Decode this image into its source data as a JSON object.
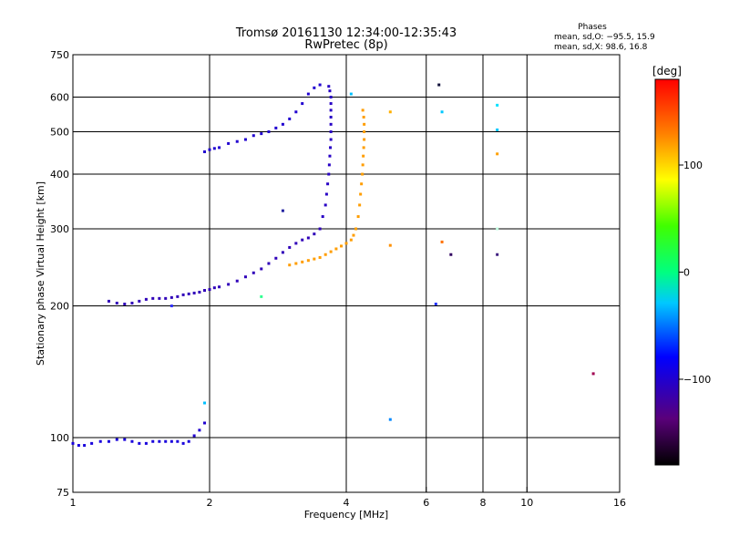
{
  "chart_data": {
    "type": "scatter",
    "title": "Tromsø 20161130 12:34:00-12:35:43",
    "subtitle": "RwPretec (8p)",
    "xlabel": "Frequency [MHz]",
    "ylabel": "Stationary phase Virtual Height [km]",
    "x_scale": "log",
    "y_scale": "log",
    "xlim": [
      1,
      16
    ],
    "ylim": [
      75,
      750
    ],
    "x_ticks": [
      "1",
      "2",
      "4",
      "6",
      "8",
      "10",
      "16"
    ],
    "x_tick_values": [
      1,
      2,
      4,
      6,
      8,
      10,
      16
    ],
    "y_ticks": [
      "75",
      "100",
      "200",
      "300",
      "400",
      "500",
      "600",
      "750"
    ],
    "y_tick_values": [
      75,
      100,
      200,
      300,
      400,
      500,
      600,
      750
    ],
    "grid": true,
    "info": {
      "heading": "Phases",
      "line1": "mean, sd,O: −95.5, 15.9",
      "line2": "mean, sd,X:  98.6, 16.8"
    },
    "colorbar": {
      "label": "[deg]",
      "range": [
        -180,
        180
      ],
      "ticks": [
        "100",
        "0",
        "−100"
      ],
      "tick_values": [
        100,
        0,
        -100
      ]
    },
    "series": [
      {
        "mode": "O",
        "phase_deg": -95,
        "points": [
          [
            1.0,
            97
          ],
          [
            1.03,
            96
          ],
          [
            1.06,
            96
          ],
          [
            1.1,
            97
          ],
          [
            1.15,
            98
          ],
          [
            1.2,
            98
          ],
          [
            1.25,
            99
          ],
          [
            1.3,
            99
          ],
          [
            1.35,
            98
          ],
          [
            1.4,
            97
          ],
          [
            1.45,
            97
          ],
          [
            1.5,
            98
          ],
          [
            1.55,
            98
          ],
          [
            1.6,
            98
          ],
          [
            1.65,
            98
          ],
          [
            1.7,
            98
          ],
          [
            1.75,
            97
          ],
          [
            1.8,
            98
          ]
        ]
      },
      {
        "mode": "O",
        "phase_deg": -100,
        "points": [
          [
            1.85,
            101
          ],
          [
            1.9,
            104
          ],
          [
            1.95,
            108
          ]
        ]
      },
      {
        "mode": "O",
        "phase_deg": -100,
        "points": [
          [
            1.95,
            450
          ],
          [
            2.0,
            455
          ],
          [
            2.05,
            458
          ],
          [
            2.1,
            460
          ],
          [
            2.2,
            470
          ],
          [
            2.3,
            475
          ],
          [
            2.4,
            480
          ],
          [
            2.5,
            490
          ],
          [
            2.6,
            495
          ],
          [
            2.7,
            500
          ],
          [
            2.8,
            510
          ],
          [
            2.9,
            520
          ],
          [
            3.0,
            535
          ],
          [
            3.1,
            555
          ],
          [
            3.2,
            580
          ],
          [
            3.3,
            610
          ],
          [
            3.4,
            630
          ],
          [
            3.5,
            640
          ]
        ]
      },
      {
        "mode": "O",
        "phase_deg": -110,
        "points": [
          [
            1.2,
            205
          ],
          [
            1.25,
            203
          ],
          [
            1.3,
            202
          ],
          [
            1.35,
            203
          ],
          [
            1.4,
            205
          ],
          [
            1.45,
            207
          ],
          [
            1.5,
            208
          ],
          [
            1.55,
            208
          ],
          [
            1.6,
            208
          ],
          [
            1.65,
            209
          ],
          [
            1.7,
            210
          ],
          [
            1.75,
            212
          ],
          [
            1.8,
            213
          ],
          [
            1.85,
            214
          ],
          [
            1.9,
            215
          ],
          [
            1.95,
            217
          ],
          [
            2.0,
            218
          ],
          [
            2.05,
            220
          ],
          [
            2.1,
            221
          ],
          [
            2.2,
            224
          ],
          [
            2.3,
            228
          ],
          [
            2.4,
            233
          ],
          [
            2.5,
            238
          ],
          [
            2.6,
            243
          ],
          [
            2.7,
            250
          ],
          [
            2.8,
            257
          ],
          [
            2.9,
            265
          ],
          [
            3.0,
            272
          ],
          [
            3.1,
            278
          ],
          [
            3.2,
            283
          ],
          [
            3.3,
            286
          ],
          [
            3.4,
            292
          ],
          [
            3.5,
            300
          ]
        ]
      },
      {
        "mode": "O",
        "phase_deg": -105,
        "points": [
          [
            3.55,
            320
          ],
          [
            3.6,
            340
          ],
          [
            3.62,
            360
          ],
          [
            3.64,
            380
          ],
          [
            3.66,
            400
          ],
          [
            3.67,
            420
          ],
          [
            3.68,
            440
          ],
          [
            3.69,
            460
          ],
          [
            3.7,
            480
          ],
          [
            3.7,
            500
          ],
          [
            3.7,
            520
          ],
          [
            3.7,
            540
          ],
          [
            3.7,
            560
          ],
          [
            3.7,
            580
          ],
          [
            3.7,
            600
          ],
          [
            3.68,
            620
          ],
          [
            3.66,
            635
          ]
        ]
      },
      {
        "mode": "X",
        "phase_deg": 120,
        "points": [
          [
            3.0,
            248
          ],
          [
            3.1,
            250
          ],
          [
            3.2,
            252
          ],
          [
            3.3,
            254
          ],
          [
            3.4,
            256
          ],
          [
            3.5,
            258
          ],
          [
            3.6,
            262
          ],
          [
            3.7,
            266
          ],
          [
            3.8,
            270
          ],
          [
            3.9,
            274
          ],
          [
            4.0,
            278
          ],
          [
            4.1,
            283
          ],
          [
            4.15,
            290
          ],
          [
            4.2,
            300
          ],
          [
            4.25,
            320
          ],
          [
            4.28,
            340
          ],
          [
            4.3,
            360
          ],
          [
            4.32,
            380
          ],
          [
            4.34,
            400
          ],
          [
            4.35,
            420
          ],
          [
            4.36,
            440
          ],
          [
            4.37,
            460
          ],
          [
            4.38,
            480
          ],
          [
            4.38,
            500
          ],
          [
            4.38,
            520
          ],
          [
            4.37,
            540
          ],
          [
            4.35,
            560
          ]
        ]
      },
      {
        "mode": "scatter",
        "phase_deg": null,
        "points": [
          [
            5.0,
            555
          ],
          [
            5.0,
            275
          ],
          [
            5.0,
            110
          ],
          [
            6.4,
            640
          ],
          [
            6.5,
            555
          ],
          [
            6.5,
            280
          ],
          [
            6.8,
            262
          ],
          [
            6.3,
            202
          ],
          [
            8.6,
            575
          ],
          [
            8.6,
            505
          ],
          [
            8.6,
            445
          ],
          [
            8.6,
            300
          ],
          [
            8.6,
            262
          ],
          [
            14,
            140
          ],
          [
            2.6,
            210
          ],
          [
            2.9,
            330
          ],
          [
            4.1,
            610
          ],
          [
            1.95,
            120
          ],
          [
            1.65,
            200
          ]
        ]
      }
    ]
  }
}
